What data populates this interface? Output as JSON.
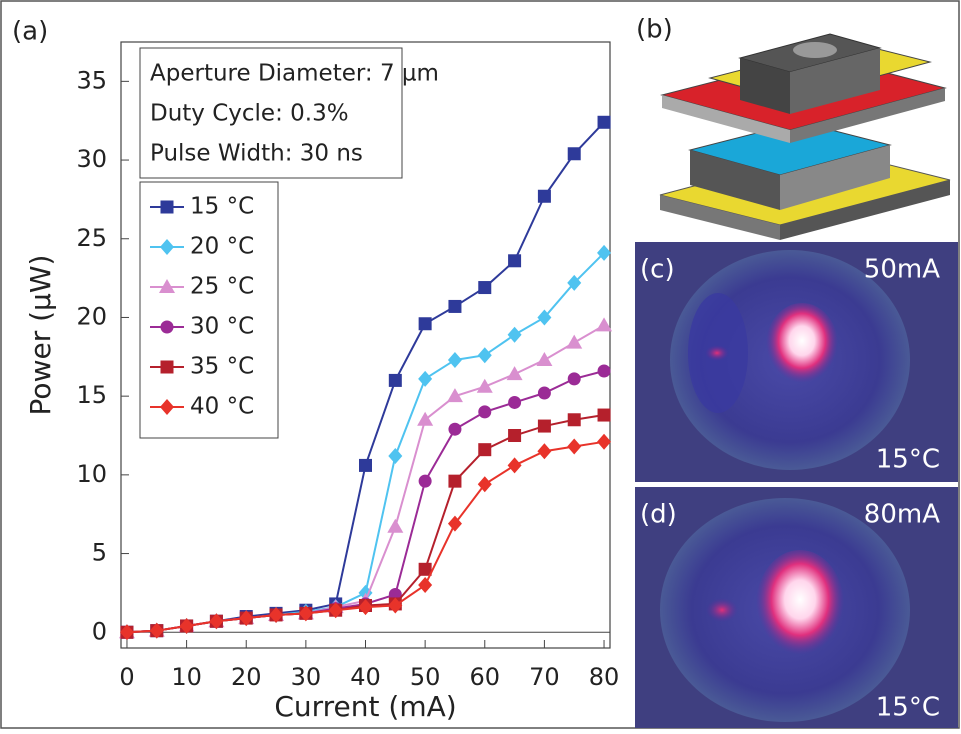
{
  "chart_data": {
    "type": "line",
    "panel_label": "(a)",
    "x_label": "Current (mA)",
    "y_label": "Power (µW)",
    "annotations": [
      "Aperture Diameter: 7 µm",
      "Duty Cycle: 0.3%",
      "Pulse Width: 30 ns"
    ],
    "x": [
      0,
      5,
      10,
      15,
      20,
      25,
      30,
      35,
      40,
      45,
      50,
      55,
      60,
      65,
      70,
      75,
      80
    ],
    "series": [
      {
        "name": "15 °C",
        "color": "#2e3a9a",
        "marker": "square",
        "values": [
          0,
          0.1,
          0.4,
          0.7,
          1.0,
          1.2,
          1.4,
          1.8,
          10.6,
          16.0,
          19.6,
          20.7,
          21.9,
          23.6,
          27.7,
          30.4,
          32.4
        ]
      },
      {
        "name": "20 °C",
        "color": "#4fc3f0",
        "marker": "diamond",
        "values": [
          0,
          0.1,
          0.4,
          0.7,
          0.9,
          1.1,
          1.3,
          1.6,
          2.5,
          11.2,
          16.1,
          17.3,
          17.6,
          18.9,
          20.0,
          22.2,
          24.1
        ]
      },
      {
        "name": "25 °C",
        "color": "#d98fcf",
        "marker": "triangle",
        "values": [
          0,
          0.1,
          0.4,
          0.7,
          0.9,
          1.1,
          1.2,
          1.6,
          2.0,
          6.7,
          13.5,
          15.0,
          15.6,
          16.4,
          17.3,
          18.4,
          19.5
        ]
      },
      {
        "name": "30 °C",
        "color": "#9b2b96",
        "marker": "circle",
        "values": [
          0,
          0.1,
          0.4,
          0.7,
          0.9,
          1.1,
          1.2,
          1.5,
          1.8,
          2.4,
          9.6,
          12.9,
          14.0,
          14.6,
          15.2,
          16.1,
          16.6
        ]
      },
      {
        "name": "35 °C",
        "color": "#b5202c",
        "marker": "square",
        "values": [
          0,
          0.1,
          0.4,
          0.7,
          0.9,
          1.1,
          1.2,
          1.4,
          1.7,
          1.8,
          4.0,
          9.6,
          11.6,
          12.5,
          13.1,
          13.5,
          13.8
        ]
      },
      {
        "name": "40 °C",
        "color": "#e8332a",
        "marker": "diamond",
        "values": [
          0,
          0.1,
          0.4,
          0.7,
          0.9,
          1.1,
          1.2,
          1.4,
          1.6,
          1.7,
          3.0,
          6.9,
          9.4,
          10.6,
          11.5,
          11.8,
          12.1
        ]
      }
    ],
    "xlim": [
      -1,
      81
    ],
    "ylim": [
      -1,
      37.5
    ],
    "xticks": [
      0,
      10,
      20,
      30,
      40,
      50,
      60,
      70,
      80
    ],
    "yticks": [
      0,
      5,
      10,
      15,
      20,
      25,
      30,
      35
    ],
    "grid": false
  },
  "panels": {
    "b": {
      "label": "(b)"
    },
    "c": {
      "label": "(c)",
      "current": "50mA",
      "temperature": "15°C"
    },
    "d": {
      "label": "(d)",
      "current": "80mA",
      "temperature": "15°C"
    }
  }
}
